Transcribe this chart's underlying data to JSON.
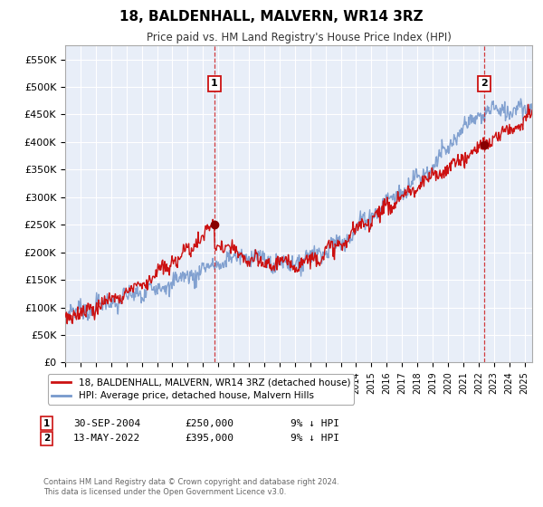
{
  "title": "18, BALDENHALL, MALVERN, WR14 3RZ",
  "subtitle": "Price paid vs. HM Land Registry's House Price Index (HPI)",
  "ylabel_ticks": [
    "£0",
    "£50K",
    "£100K",
    "£150K",
    "£200K",
    "£250K",
    "£300K",
    "£350K",
    "£400K",
    "£450K",
    "£500K",
    "£550K"
  ],
  "ytick_values": [
    0,
    50000,
    100000,
    150000,
    200000,
    250000,
    300000,
    350000,
    400000,
    450000,
    500000,
    550000
  ],
  "ylim": [
    0,
    575000
  ],
  "sale1_date_x": 2004.75,
  "sale1_price": 250000,
  "sale1_label": "1",
  "sale2_date_x": 2022.37,
  "sale2_price": 395000,
  "sale2_label": "2",
  "background_color": "#e8eef8",
  "fig_bg_color": "#ffffff",
  "grid_color": "#ffffff",
  "hpi_line_color": "#7799cc",
  "price_line_color": "#cc1111",
  "legend_label1": "18, BALDENHALL, MALVERN, WR14 3RZ (detached house)",
  "legend_label2": "HPI: Average price, detached house, Malvern Hills",
  "footer": "Contains HM Land Registry data © Crown copyright and database right 2024.\nThis data is licensed under the Open Government Licence v3.0.",
  "xmin": 1995.0,
  "xmax": 2025.5
}
